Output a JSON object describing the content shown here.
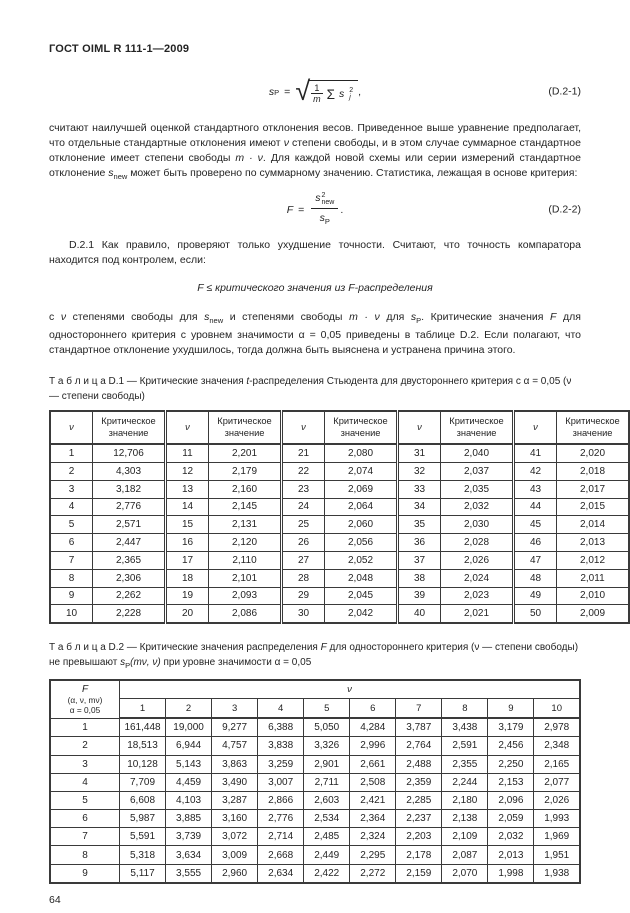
{
  "doc": {
    "header": "ГОСТ OIML R 111-1—2009",
    "page_number": "64"
  },
  "formula1": {
    "lhs_base": "s",
    "lhs_sub": "P",
    "equals": "=",
    "radical": "√",
    "frac_num": "1",
    "frac_den": "m",
    "sigma": "Σ",
    "term_base": "s",
    "term_sup": "2",
    "term_sub": "j",
    "comma": ",",
    "label": "(D.2-1)"
  },
  "formula2": {
    "lhs": "F",
    "equals": "=",
    "num_base": "s",
    "num_sup": "2",
    "num_sub": "new",
    "den_base": "s",
    "den_sub": "P",
    "period": ".",
    "label": "(D.2-2)"
  },
  "para1": {
    "a": "считают наилучшей оценкой стандартного отклонения весов. Приведенное выше уравнение предполагает, что отдельные стандартные отклонения имеют ",
    "b": "ν",
    "c": " степени свободы, и в этом случае суммарное стандартное отклонение имеет степени свободы ",
    "d": "m · ν",
    "e": ". Для каждой новой схемы или серии измерений стандартное отклонение ",
    "f": "s",
    "g": "new",
    "h": " может быть проверено по суммарному значению. Статистика, лежащая в основе критерия:"
  },
  "para2": "D.2.1 Как правило, проверяют только ухудшение точности. Считают, что точность компаратора находится под контролем, если:",
  "condition": "F ≤ критического значения из F-распределения",
  "para3": {
    "a": "с ",
    "b": "ν",
    "c": " степенями свободы для ",
    "d": "s",
    "e": "new",
    "f": " и степенями свободы ",
    "g": "m · ν",
    "h": " для ",
    "i": "s",
    "j": "P",
    "k": ". Критические значения ",
    "l": "F",
    "m": " для одностороннего критерия с уровнем значимости α = 0,05 приведены в таблице D.2. Если полагают, что стандартное отклонение ухудшилось, тогда должна быть выяснена и устранена причина этого."
  },
  "table_d1": {
    "caption_a": "Т а б л и ц а  D.1 — Критические значения ",
    "caption_b": "t",
    "caption_c": "-распределения Стьюдента для двустороннего критерия с α = 0,05 (ν — степени свободы)",
    "col_nu": "ν",
    "col_value": "Критическое значение",
    "rows": [
      [
        "1",
        "12,706",
        "11",
        "2,201",
        "21",
        "2,080",
        "31",
        "2,040",
        "41",
        "2,020"
      ],
      [
        "2",
        "4,303",
        "12",
        "2,179",
        "22",
        "2,074",
        "32",
        "2,037",
        "42",
        "2,018"
      ],
      [
        "3",
        "3,182",
        "13",
        "2,160",
        "23",
        "2,069",
        "33",
        "2,035",
        "43",
        "2,017"
      ],
      [
        "4",
        "2,776",
        "14",
        "2,145",
        "24",
        "2,064",
        "34",
        "2,032",
        "44",
        "2,015"
      ],
      [
        "5",
        "2,571",
        "15",
        "2,131",
        "25",
        "2,060",
        "35",
        "2,030",
        "45",
        "2,014"
      ],
      [
        "6",
        "2,447",
        "16",
        "2,120",
        "26",
        "2,056",
        "36",
        "2,028",
        "46",
        "2,013"
      ],
      [
        "7",
        "2,365",
        "17",
        "2,110",
        "27",
        "2,052",
        "37",
        "2,026",
        "47",
        "2,012"
      ],
      [
        "8",
        "2,306",
        "18",
        "2,101",
        "28",
        "2,048",
        "38",
        "2,024",
        "48",
        "2,011"
      ],
      [
        "9",
        "2,262",
        "19",
        "2,093",
        "29",
        "2,045",
        "39",
        "2,023",
        "49",
        "2,010"
      ],
      [
        "10",
        "2,228",
        "20",
        "2,086",
        "30",
        "2,042",
        "40",
        "2,021",
        "50",
        "2,009"
      ]
    ]
  },
  "table_d2": {
    "caption_a": "Т а б л и ц а  D.2 — Критические значения распределения ",
    "caption_b": "F",
    "caption_c": " для одностороннего критерия (ν — степени свободы) не превышают ",
    "caption_d": "s",
    "caption_e": "P",
    "caption_f": "(mν, ν)",
    "caption_g": " при уровне значимости α = 0,05",
    "corner_line1": "F",
    "corner_line2": "(α, ν, mν)",
    "corner_line3": "α = 0,05",
    "span_header": "ν",
    "columns": [
      "1",
      "2",
      "3",
      "4",
      "5",
      "6",
      "7",
      "8",
      "9",
      "10"
    ],
    "rows": [
      [
        "1",
        "161,448",
        "19,000",
        "9,277",
        "6,388",
        "5,050",
        "4,284",
        "3,787",
        "3,438",
        "3,179",
        "2,978"
      ],
      [
        "2",
        "18,513",
        "6,944",
        "4,757",
        "3,838",
        "3,326",
        "2,996",
        "2,764",
        "2,591",
        "2,456",
        "2,348"
      ],
      [
        "3",
        "10,128",
        "5,143",
        "3,863",
        "3,259",
        "2,901",
        "2,661",
        "2,488",
        "2,355",
        "2,250",
        "2,165"
      ],
      [
        "4",
        "7,709",
        "4,459",
        "3,490",
        "3,007",
        "2,711",
        "2,508",
        "2,359",
        "2,244",
        "2,153",
        "2,077"
      ],
      [
        "5",
        "6,608",
        "4,103",
        "3,287",
        "2,866",
        "2,603",
        "2,421",
        "2,285",
        "2,180",
        "2,096",
        "2,026"
      ],
      [
        "6",
        "5,987",
        "3,885",
        "3,160",
        "2,776",
        "2,534",
        "2,364",
        "2,237",
        "2,138",
        "2,059",
        "1,993"
      ],
      [
        "7",
        "5,591",
        "3,739",
        "3,072",
        "2,714",
        "2,485",
        "2,324",
        "2,203",
        "2,109",
        "2,032",
        "1,969"
      ],
      [
        "8",
        "5,318",
        "3,634",
        "3,009",
        "2,668",
        "2,449",
        "2,295",
        "2,178",
        "2,087",
        "2,013",
        "1,951"
      ],
      [
        "9",
        "5,117",
        "3,555",
        "2,960",
        "2,634",
        "2,422",
        "2,272",
        "2,159",
        "2,070",
        "1,998",
        "1,938"
      ]
    ]
  }
}
